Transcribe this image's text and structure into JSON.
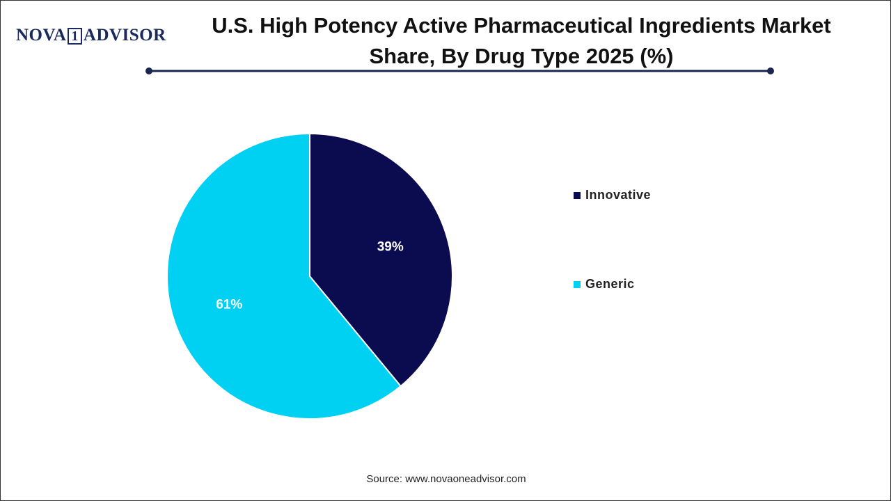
{
  "logo": {
    "part1": "NOVA",
    "part2": "1",
    "part3": "ADVISOR"
  },
  "chart_data": {
    "type": "pie",
    "title": "U.S. High Potency Active Pharmaceutical Ingredients Market Share, By Drug Type 2025 (%)",
    "categories": [
      "Innovative",
      "Generic"
    ],
    "values": [
      39,
      61
    ],
    "value_labels": [
      "39%",
      "61%"
    ],
    "colors": [
      "#0b0b4f",
      "#00d0f2"
    ],
    "legend": "right"
  },
  "source": "Source: www.novaoneadvisor.com"
}
